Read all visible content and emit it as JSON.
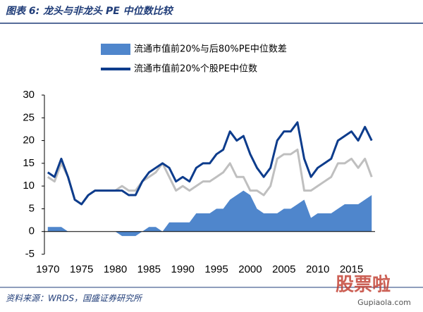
{
  "chart_data": {
    "type": "line",
    "title": "图表 6:  龙头与非龙头 PE 中位数比较",
    "source": "资料来源：WRDS，国盛证券研究所",
    "watermark": {
      "logo": "股票啦",
      "site": "Gupiaola.com"
    },
    "x": [
      1970,
      1971,
      1972,
      1973,
      1974,
      1975,
      1976,
      1977,
      1978,
      1979,
      1980,
      1981,
      1982,
      1983,
      1984,
      1985,
      1986,
      1987,
      1988,
      1989,
      1990,
      1991,
      1992,
      1993,
      1994,
      1995,
      1996,
      1997,
      1998,
      1999,
      2000,
      2001,
      2002,
      2003,
      2004,
      2005,
      2006,
      2007,
      2008,
      2009,
      2010,
      2011,
      2012,
      2013,
      2014,
      2015,
      2016,
      2017,
      2018
    ],
    "series": [
      {
        "name": "流通市值前20%与后80%PE中位数差",
        "type": "area",
        "color": "#4f86cc",
        "values": [
          1,
          1,
          1,
          0,
          0,
          0,
          0,
          0,
          0,
          0,
          0,
          -1,
          -1,
          -1,
          0,
          1,
          1,
          0,
          2,
          2,
          2,
          2,
          4,
          4,
          4,
          5,
          5,
          7,
          8,
          9,
          8,
          5,
          4,
          4,
          4,
          5,
          5,
          6,
          7,
          3,
          4,
          4,
          4,
          5,
          6,
          6,
          6,
          7,
          8
        ]
      },
      {
        "name": "流通市值前20%个股PE中位数",
        "color": "#0d3c8c",
        "values": [
          13,
          12,
          16,
          12,
          7,
          6,
          8,
          9,
          9,
          9,
          9,
          9,
          8,
          8,
          11,
          13,
          14,
          15,
          14,
          11,
          12,
          11,
          14,
          15,
          15,
          17,
          18,
          22,
          20,
          21,
          17,
          14,
          12,
          14,
          20,
          22,
          22,
          24,
          16,
          12,
          14,
          15,
          16,
          20,
          21,
          22,
          20,
          23,
          20
        ]
      },
      {
        "color": "#bfbfbf",
        "values": [
          12,
          11,
          15,
          12,
          7,
          6,
          8,
          9,
          9,
          9,
          9,
          10,
          9,
          9,
          11,
          12,
          13,
          15,
          12,
          9,
          10,
          9,
          10,
          11,
          11,
          12,
          13,
          15,
          12,
          12,
          9,
          9,
          8,
          10,
          16,
          17,
          17,
          18,
          9,
          9,
          10,
          11,
          12,
          15,
          15,
          16,
          14,
          16,
          12
        ]
      }
    ],
    "xlim": [
      1969.5,
      2018.5
    ],
    "xticks": [
      1970,
      1975,
      1980,
      1985,
      1990,
      1995,
      2000,
      2005,
      2010,
      2015
    ],
    "ylim": [
      -5,
      30
    ],
    "yticks": [
      -5,
      0,
      5,
      10,
      15,
      20,
      25,
      30
    ]
  }
}
